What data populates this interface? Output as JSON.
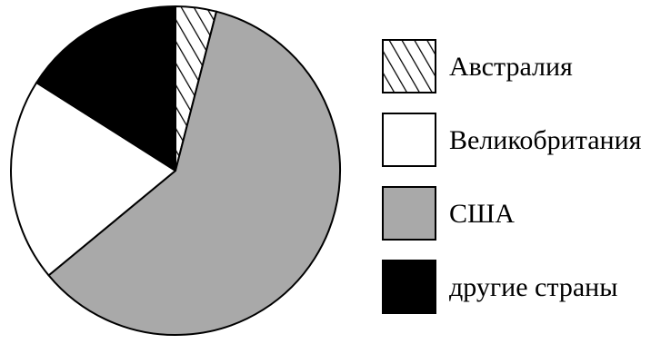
{
  "chart_data": {
    "type": "pie",
    "title": "",
    "series": [
      {
        "name": "Австралия",
        "value": 4,
        "color": "#ffffff",
        "pattern": "diagonal-hatch"
      },
      {
        "name": "США",
        "value": 60,
        "color": "#a9a9a9",
        "pattern": "solid"
      },
      {
        "name": "Великобритания",
        "value": 20,
        "color": "#ffffff",
        "pattern": "solid"
      },
      {
        "name": "другие страны",
        "value": 16,
        "color": "#000000",
        "pattern": "solid"
      }
    ],
    "start": "12-o-clock",
    "direction": "clockwise",
    "legend": {
      "position": "right",
      "order": [
        "Австралия",
        "Великобритания",
        "США",
        "другие страны"
      ]
    },
    "stroke_color": "#000000"
  }
}
